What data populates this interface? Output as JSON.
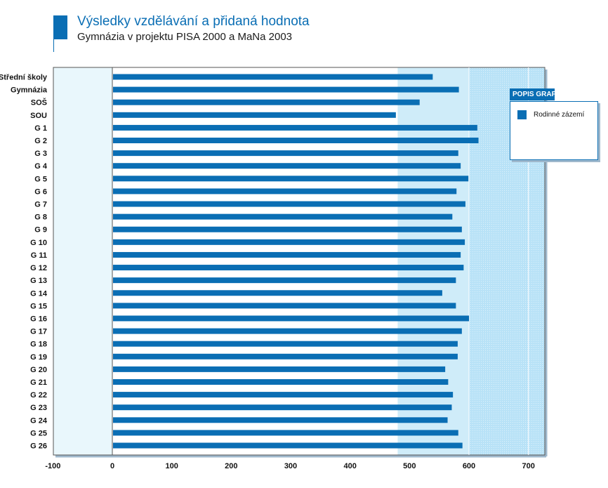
{
  "header": {
    "title": "Výsledky vzdělávání a přidaná hodnota",
    "subtitle": "Gymnázia v projektu PISA 2000 a MaNa 2003"
  },
  "legend": {
    "title": "POPIS GRAFU",
    "items": [
      {
        "label": "Rodinné zázemí",
        "color": "#0a6eb4"
      }
    ]
  },
  "colors": {
    "bar": "#0a6eb4",
    "plot_left": "#e9f7fc",
    "plot_mid": "#cfecf9",
    "plot_right": "#b8e2f7",
    "accent": "#0a6eb4"
  },
  "chart_data": {
    "type": "bar",
    "orientation": "horizontal",
    "categories": [
      "Střední školy",
      "Gymnázia",
      "SOŠ",
      "SOU",
      "G 1",
      "G 2",
      "G 3",
      "G 4",
      "G 5",
      "G 6",
      "G 7",
      "G 8",
      "G 9",
      "G 10",
      "G 11",
      "G 12",
      "G 13",
      "G 14",
      "G 15",
      "G 16",
      "G 17",
      "G 18",
      "G 19",
      "G 20",
      "G 21",
      "G 22",
      "G 23",
      "G 24",
      "G 25",
      "G 26"
    ],
    "series": [
      {
        "name": "Rodinné zázemí",
        "values": [
          539,
          583,
          517,
          477,
          614,
          616,
          582,
          586,
          599,
          579,
          594,
          572,
          588,
          593,
          586,
          591,
          578,
          555,
          578,
          600,
          588,
          581,
          581,
          560,
          565,
          573,
          571,
          564,
          582,
          589
        ]
      }
    ],
    "xlim": [
      -100,
      730
    ],
    "xticks": [
      -100,
      0,
      100,
      200,
      300,
      400,
      500,
      600,
      700
    ],
    "xlabel": "",
    "ylabel": "",
    "grid": true,
    "legend_position": "right"
  }
}
